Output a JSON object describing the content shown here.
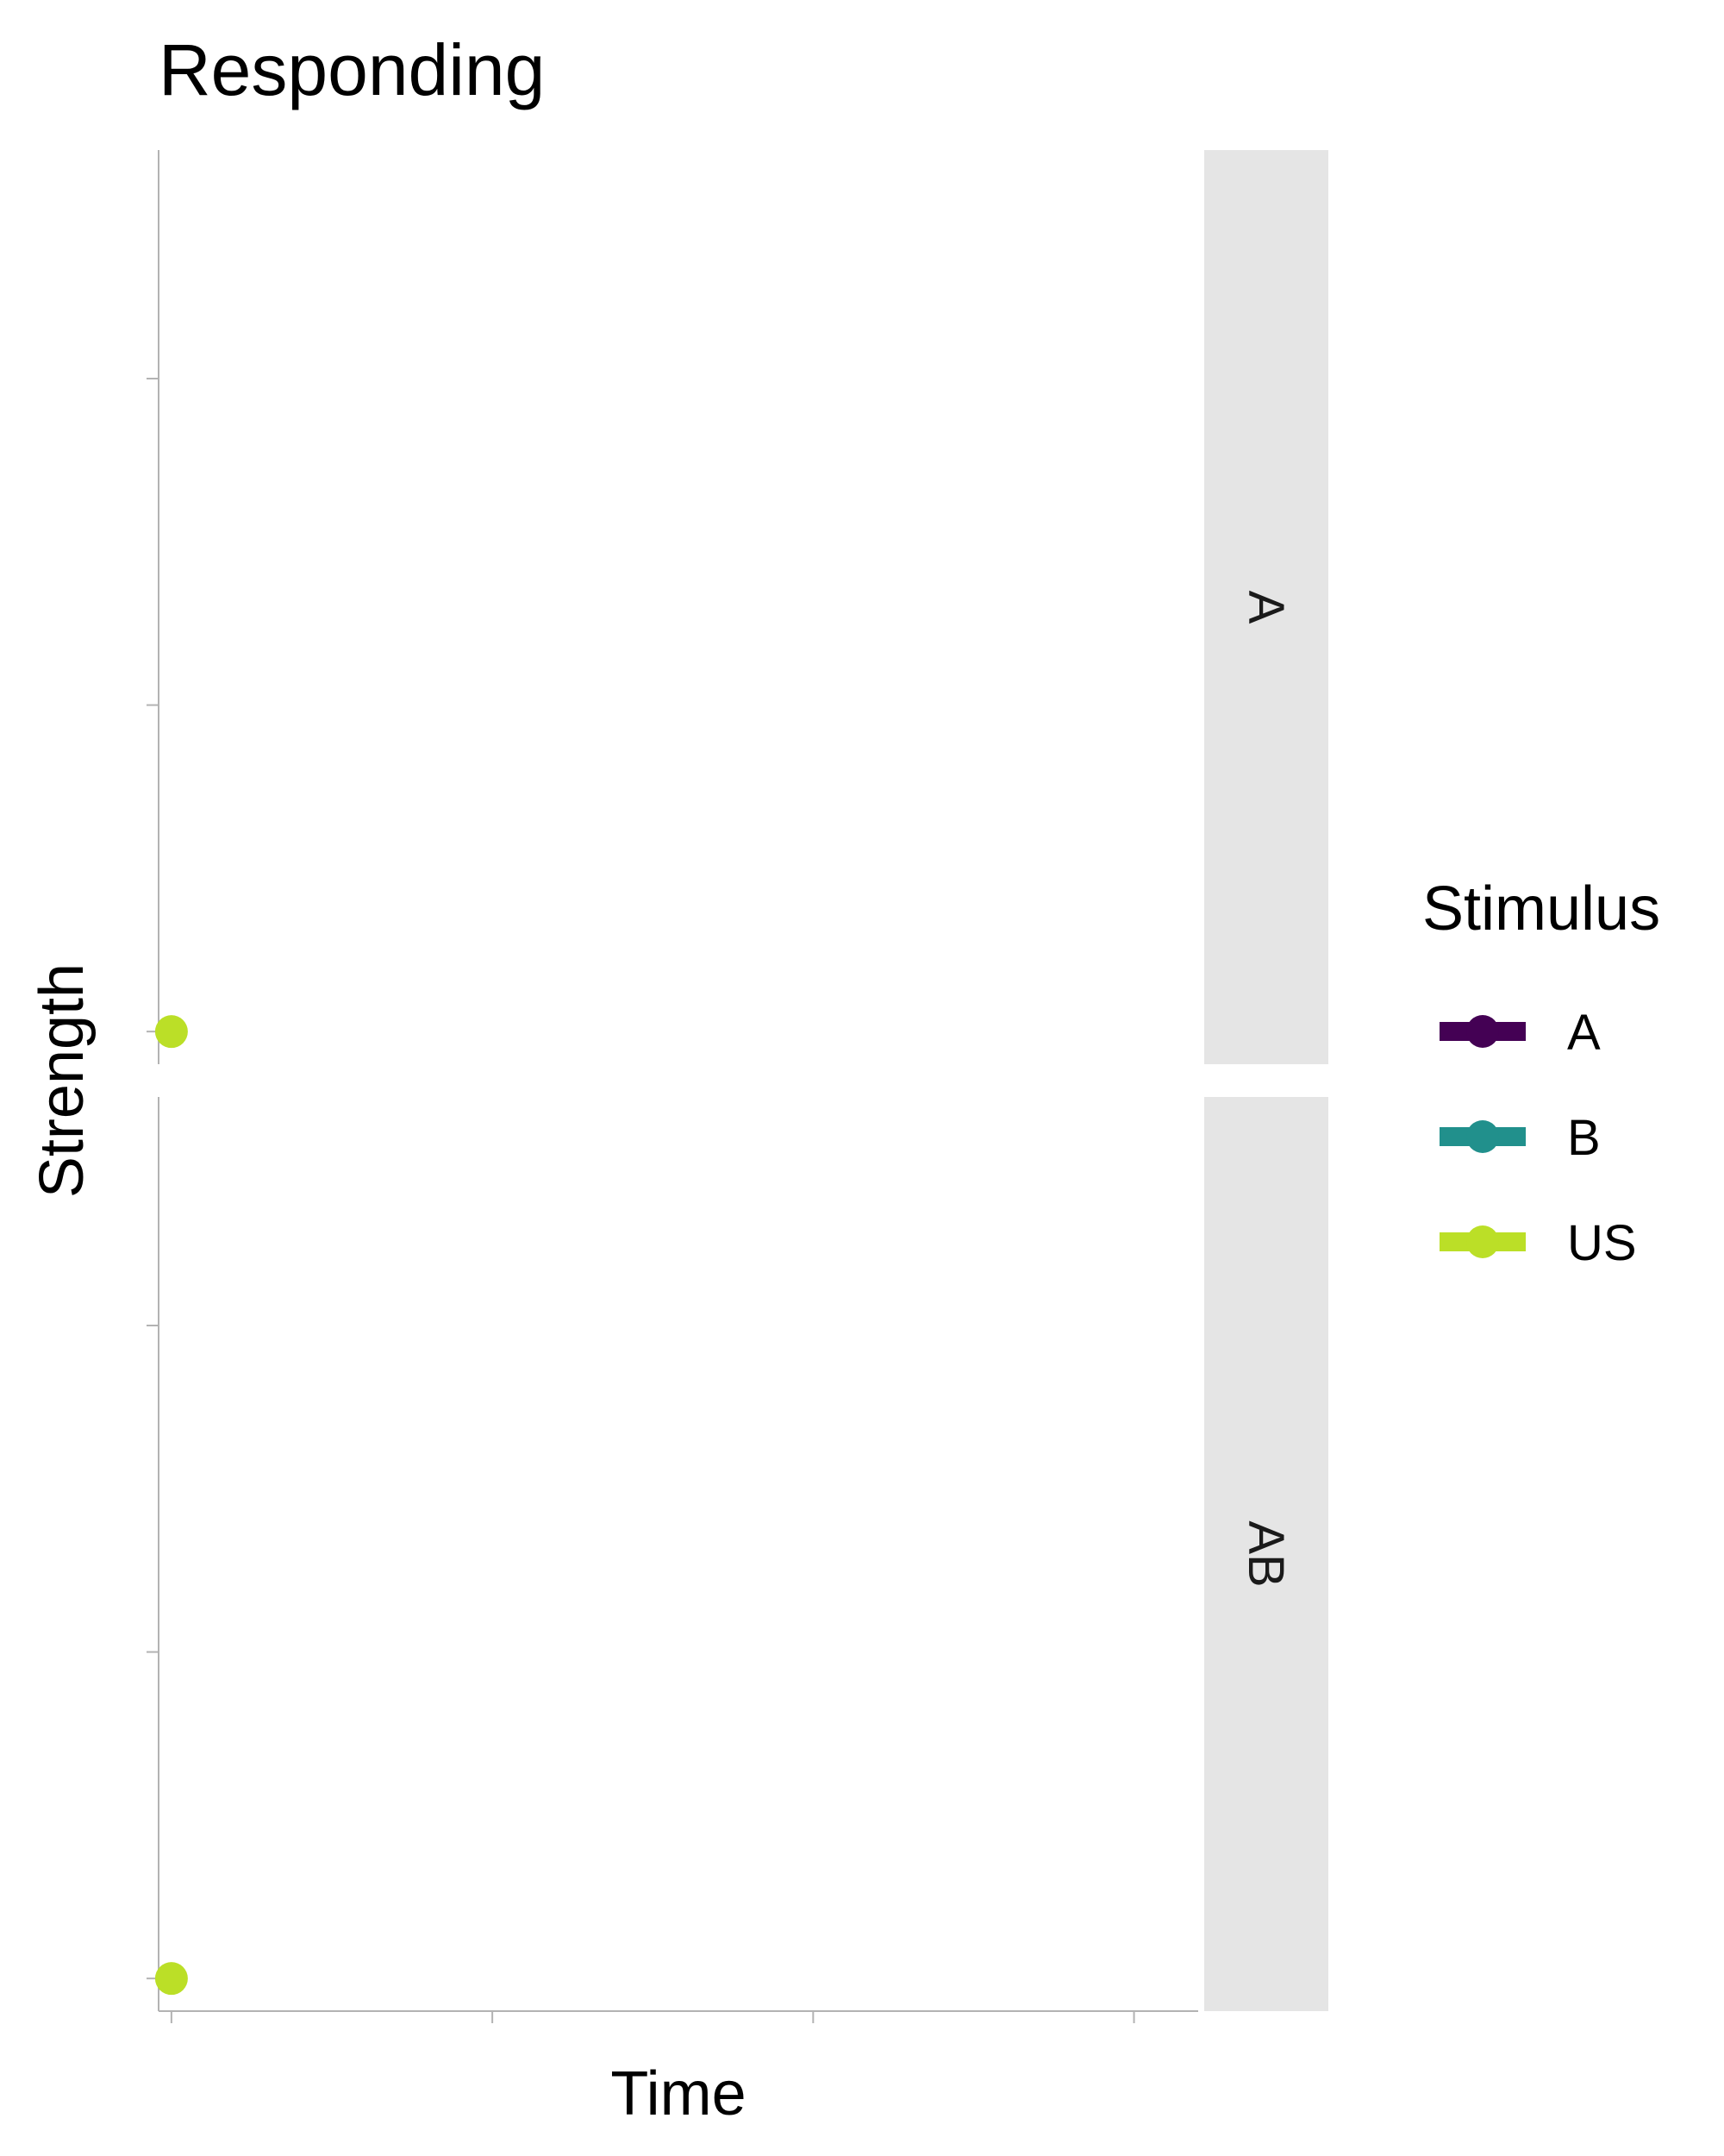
{
  "chart_data": {
    "type": "line",
    "title": "Responding",
    "xlabel": "Time",
    "ylabel": "Strength",
    "facet_strips": [
      "A",
      "AB"
    ],
    "legend": {
      "title": "Stimulus",
      "placement": "right",
      "entries": [
        {
          "label": "A",
          "color": "#440154"
        },
        {
          "label": "B",
          "color": "#21908C"
        },
        {
          "label": "US",
          "color": "#BBDF27"
        }
      ]
    },
    "x_ticks": 4,
    "y_ticks_per_panel": 3,
    "grid": false,
    "panels": [
      {
        "strip": "A",
        "points": [
          {
            "series": "US",
            "x": 1,
            "y": 0
          }
        ]
      },
      {
        "strip": "AB",
        "points": [
          {
            "series": "US",
            "x": 1,
            "y": 0
          }
        ]
      }
    ],
    "xlim": [
      0.8,
      17
    ],
    "ylim": [
      -0.1,
      2.7
    ]
  }
}
